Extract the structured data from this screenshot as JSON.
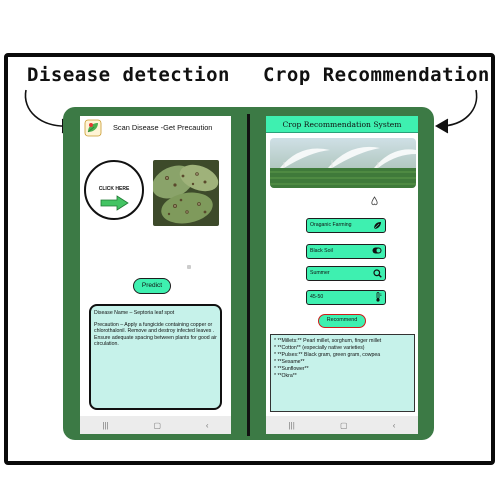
{
  "captions": {
    "left": "Disease detection",
    "right": "Crop Recommendation"
  },
  "disease_app": {
    "title": "Scan Disease -Get Precaution",
    "click_here_label": "CLICK HERE",
    "predict_label": "Predict",
    "result": {
      "disease_line": "Disease Name – Septoria leaf spot",
      "precaution_line": "Precaution – Apply a fungicide containing copper or chlorothalonil. Remove and destroy infected leaves . Ensure adequate spacing between plants for good air circulation."
    }
  },
  "crop_app": {
    "title": "Crop  Recommendation System",
    "fields": [
      {
        "value": "Oraganic Farming",
        "icon": "leaf-pen-icon"
      },
      {
        "value": "Black Soil",
        "icon": "toggle-icon"
      },
      {
        "value": "Summer",
        "icon": "search-icon"
      },
      {
        "value": "45-50",
        "icon": "thermometer-icon"
      }
    ],
    "recommend_label": "Recommend",
    "results": [
      "* **Millets:** Pearl millet, sorghum, finger millet",
      "* **Cotton** (especially native varieties)",
      "* **Pulses:** Black gram, green gram, cowpea",
      "* **Sesame**",
      "* **Sunflower**",
      "* **Okra**"
    ]
  },
  "navbar": {
    "recents": "|||",
    "home": "▢",
    "back": "‹"
  },
  "colors": {
    "panel_green": "#3c7a45",
    "accent_mint": "#3ef0b0",
    "result_bg": "#c6f2ea"
  }
}
